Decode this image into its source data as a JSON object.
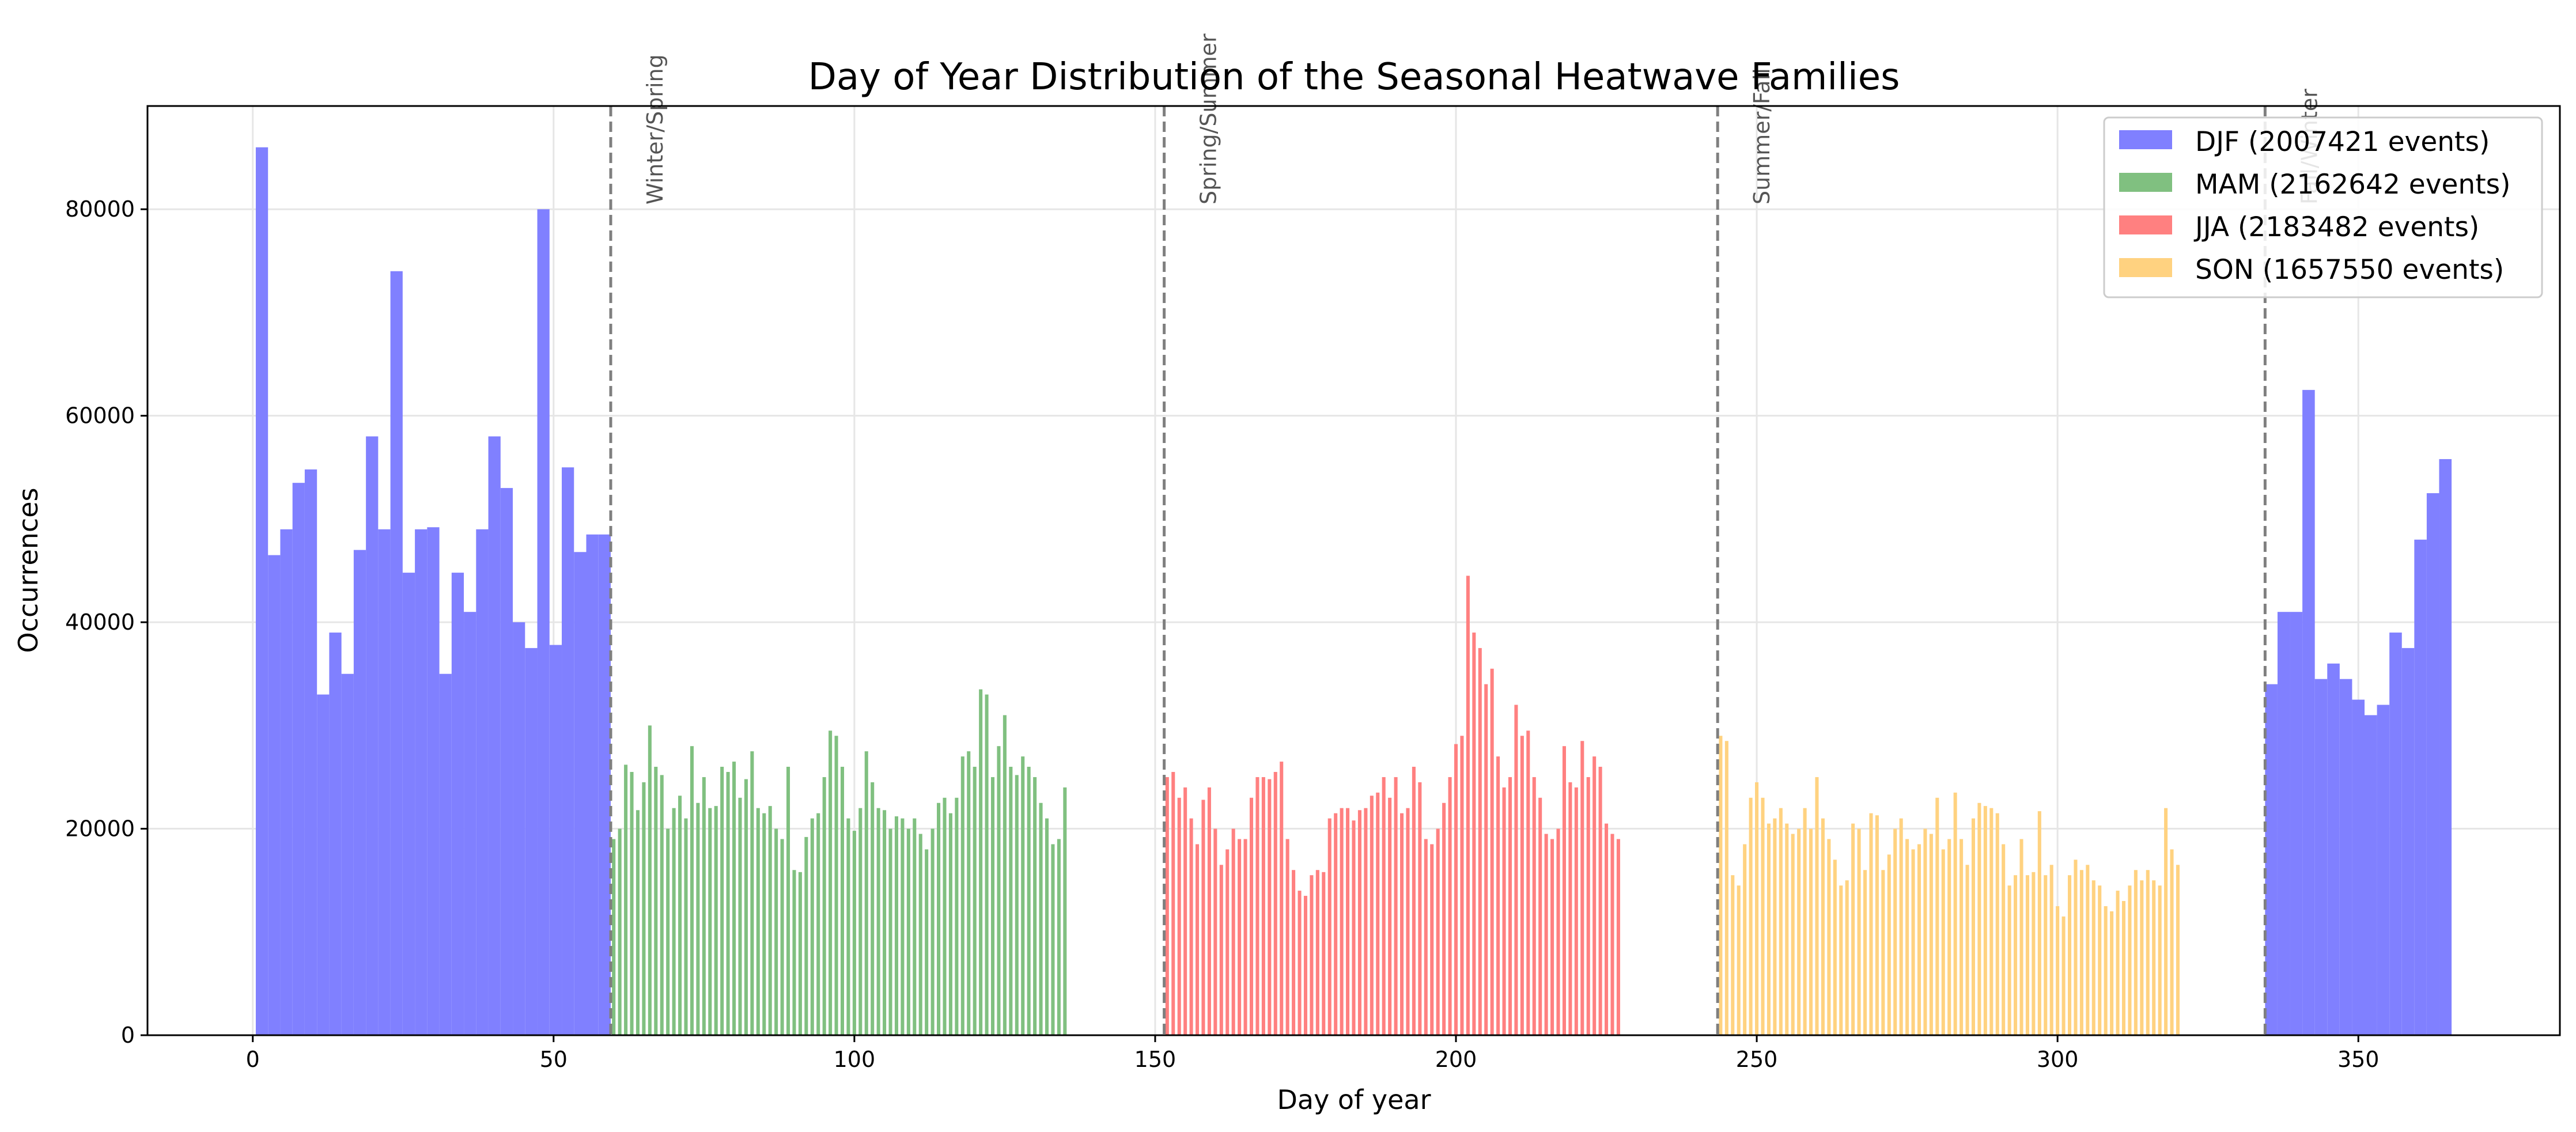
{
  "chart_data": {
    "type": "bar",
    "title": "Day of Year Distribution of the Seasonal Heatwave Families",
    "xlabel": "Day of year",
    "ylabel": "Occurrences",
    "xlim": [
      -17.5,
      383.5
    ],
    "ylim": [
      0,
      90000
    ],
    "xticks": [
      0,
      50,
      100,
      150,
      200,
      250,
      300,
      350
    ],
    "yticks": [
      0,
      20000,
      40000,
      60000,
      80000
    ],
    "grid": true,
    "legend_position": "top-right",
    "colors": {
      "DJF": "#8080ff",
      "MAM": "#80c080",
      "JJA": "#ff8080",
      "SON": "#ffd280",
      "boundary": "#7f7f7f"
    },
    "legend": [
      {
        "key": "DJF",
        "label": "DJF (2007421 events)"
      },
      {
        "key": "MAM",
        "label": "MAM (2162642 events)"
      },
      {
        "key": "JJA",
        "label": "JJA (2183482 events)"
      },
      {
        "key": "SON",
        "label": "SON (1657550 events)"
      }
    ],
    "season_boundaries": [
      {
        "day": 59.5,
        "label": "Winter/Spring"
      },
      {
        "day": 151.5,
        "label": "Spring/Summer"
      },
      {
        "day": 243.5,
        "label": "Summer/Fall"
      },
      {
        "day": 334.5,
        "label": "Fall/Winter"
      }
    ],
    "series": [
      {
        "name": "DJF",
        "start_day": 1,
        "values": [
          86000,
          46500,
          49000,
          53500,
          54800,
          33000,
          39000,
          35000,
          47000,
          58000,
          49000,
          74000,
          44800,
          49000,
          49200,
          35000,
          44800,
          41000,
          49000,
          58000,
          53000,
          40000,
          37500,
          80000,
          37800,
          55000,
          46800,
          48500,
          48500
        ]
      },
      {
        "name": "MAM",
        "start_day": 60,
        "values": [
          19000,
          20000,
          26200,
          25500,
          21800,
          24500,
          30000,
          26000,
          25200,
          20000,
          22000,
          23200,
          21000,
          28000,
          22500,
          25000,
          22000,
          22200,
          26000,
          25500,
          26500,
          23000,
          24800,
          27500,
          22000,
          21500,
          22200,
          20000,
          19000,
          26000,
          16000,
          15800,
          19200,
          21000,
          21500,
          25000,
          29500,
          29000,
          26000,
          21000,
          19800,
          22000,
          27500,
          24500,
          22000,
          21800,
          20000,
          21200,
          21000,
          20000,
          21000,
          19500,
          18000,
          20000,
          22500,
          23000,
          21500,
          23000,
          27000,
          27500,
          26000,
          33500,
          33000,
          25000,
          28000,
          31000,
          26000,
          25200,
          27000,
          26000,
          25000,
          22500,
          21000,
          18500,
          19000,
          24000
        ]
      },
      {
        "name": "JJA",
        "start_day": 152,
        "values": [
          25000,
          25500,
          23000,
          24000,
          21000,
          18500,
          22800,
          24000,
          20000,
          16500,
          18000,
          20000,
          19000,
          19000,
          23000,
          25000,
          25000,
          24800,
          25500,
          26500,
          19000,
          16000,
          14000,
          13500,
          15500,
          16000,
          15800,
          21000,
          21500,
          22000,
          22000,
          20800,
          21800,
          22000,
          23200,
          23500,
          25000,
          23000,
          25000,
          21500,
          22000,
          26000,
          24500,
          19000,
          18500,
          20000,
          22500,
          25000,
          28200,
          29000,
          44500,
          39000,
          37500,
          34000,
          35500,
          27000,
          24000,
          25000,
          32000,
          29000,
          29500,
          25000,
          23000,
          19500,
          19000,
          20000,
          28000,
          24500,
          24000,
          28500,
          25000,
          27000,
          26000,
          20500,
          19500,
          19000
        ]
      },
      {
        "name": "SON",
        "start_day": 244,
        "values": [
          29000,
          28500,
          15500,
          14500,
          18500,
          23000,
          24500,
          23000,
          20500,
          21000,
          22000,
          20500,
          19500,
          20000,
          22000,
          20000,
          25000,
          21000,
          19000,
          17000,
          14500,
          15000,
          20500,
          20000,
          16000,
          21500,
          21300,
          16000,
          17500,
          20000,
          21000,
          19000,
          18000,
          18500,
          20000,
          19500,
          23000,
          18000,
          19000,
          23500,
          19000,
          16500,
          21000,
          22500,
          22200,
          22000,
          21500,
          18500,
          14500,
          15500,
          19000,
          15500,
          15800,
          21700,
          15500,
          16500,
          12500,
          11500,
          15500,
          17000,
          16000,
          16500,
          15000,
          14500,
          12500,
          12000,
          14000,
          13000,
          14500,
          16000,
          15000,
          16000,
          15000,
          14500,
          22000,
          18000,
          16500
        ]
      },
      {
        "name": "DJF",
        "start_day": 335,
        "values": [
          34000,
          41000,
          41000,
          62500,
          34500,
          36000,
          34500,
          32500,
          31000,
          32000,
          39000,
          37500,
          48000,
          52500,
          55800
        ]
      }
    ]
  }
}
